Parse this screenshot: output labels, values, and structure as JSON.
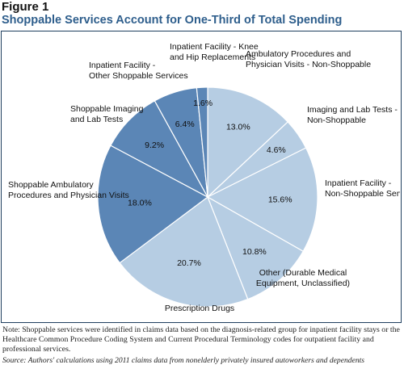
{
  "figure_label": "Figure 1",
  "title": "Shoppable Services Account for One-Third of Total Spending",
  "note": "Note: Shoppable services were identified in claims data based on the diagnosis-related group for inpatient facility stays or the Healthcare Common Procedure Coding System and Current Procedural Terminology codes for outpatient facility and professional services.",
  "source": "Source: Authors' calculations using 2011 claims data from nonelderly privately insured autoworkers and dependents",
  "colors": {
    "shoppable": "#5b86b6",
    "non_shoppable": "#b6cde3",
    "slice_border": "#ffffff",
    "title": "#2e5e8c"
  },
  "chart_data": {
    "type": "pie",
    "start_angle_deg": 0,
    "direction": "clockwise",
    "slices": [
      {
        "name": "Ambulatory Procedures and Physician Visits - Non-Shoppable",
        "label_lines": [
          "Ambulatory Procedures and",
          "Physician Visits - Non-Shoppable"
        ],
        "value": 13.0,
        "pct_label": "13.0%",
        "group": "non_shoppable"
      },
      {
        "name": "Imaging and Lab Tests - Non-Shoppable",
        "label_lines": [
          "Imaging and Lab Tests -",
          "Non-Shoppable"
        ],
        "value": 4.6,
        "pct_label": "4.6%",
        "group": "non_shoppable"
      },
      {
        "name": "Inpatient Facility - Non-Shoppable Services",
        "label_lines": [
          "Inpatient Facility -",
          "Non-Shoppable Services"
        ],
        "value": 15.6,
        "pct_label": "15.6%",
        "group": "non_shoppable"
      },
      {
        "name": "Other (Durable Medical Equipment, Unclassified)",
        "label_lines": [
          "Other (Durable Medical",
          "Equipment, Unclassified)"
        ],
        "value": 10.8,
        "pct_label": "10.8%",
        "group": "non_shoppable"
      },
      {
        "name": "Prescription Drugs",
        "label_lines": [
          "Prescription Drugs"
        ],
        "value": 20.7,
        "pct_label": "20.7%",
        "group": "non_shoppable"
      },
      {
        "name": "Shoppable Ambulatory Procedures and Physician Visits",
        "label_lines": [
          "Shoppable Ambulatory",
          "Procedures and Physician Visits"
        ],
        "value": 18.0,
        "pct_label": "18.0%",
        "group": "shoppable"
      },
      {
        "name": "Shoppable Imaging and Lab Tests",
        "label_lines": [
          "Shoppable Imaging",
          "and Lab Tests"
        ],
        "value": 9.2,
        "pct_label": "9.2%",
        "group": "shoppable"
      },
      {
        "name": "Inpatient Facility - Other Shoppable Services",
        "label_lines": [
          "Inpatient Facility -",
          "Other Shoppable Services"
        ],
        "value": 6.4,
        "pct_label": "6.4%",
        "group": "shoppable"
      },
      {
        "name": "Inpatient Facility - Knee and Hip Replacements",
        "label_lines": [
          "Inpatient Facility - Knee",
          "and Hip Replacements"
        ],
        "value": 1.6,
        "pct_label": "1.6%",
        "group": "shoppable"
      }
    ]
  }
}
